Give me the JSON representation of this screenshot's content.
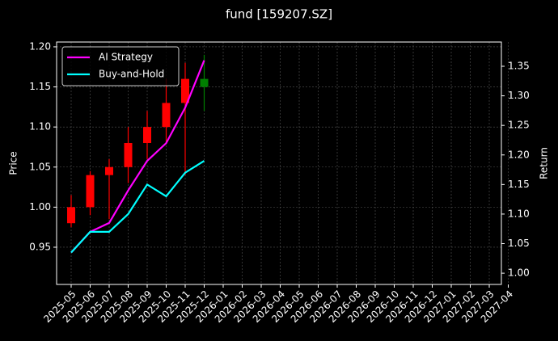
{
  "chart_data": {
    "type": "candlestick",
    "title": "fund [159207.SZ]",
    "ylabel": "Price",
    "y2label": "Return",
    "grid": true,
    "legend": "upper left",
    "up_color": "#ff0000",
    "down_color": "#008000",
    "x": [
      "2025-05",
      "2025-06",
      "2025-07",
      "2025-08",
      "2025-09",
      "2025-10",
      "2025-11",
      "2025-12"
    ],
    "open": [
      0.98,
      1.0,
      1.04,
      1.05,
      1.08,
      1.1,
      1.13,
      1.16
    ],
    "high": [
      1.015,
      1.045,
      1.06,
      1.1,
      1.12,
      1.16,
      1.18,
      1.19
    ],
    "low": [
      0.975,
      0.99,
      0.985,
      1.03,
      1.06,
      1.08,
      1.04,
      1.12
    ],
    "close": [
      1.0,
      1.04,
      1.05,
      1.08,
      1.1,
      1.13,
      1.16,
      1.15
    ],
    "series": [
      {
        "name": "AI Strategy",
        "color": "#ff00ff",
        "axis": "y2",
        "values": [
          1.035,
          1.07,
          1.085,
          1.14,
          1.19,
          1.22,
          1.28,
          1.36
        ]
      },
      {
        "name": "Buy-and-Hold",
        "color": "#00ffff",
        "axis": "y2",
        "values": [
          1.035,
          1.07,
          1.07,
          1.1,
          1.15,
          1.13,
          1.17,
          1.19
        ]
      }
    ],
    "xticks": [
      "2025-05",
      "2025-06",
      "2025-07",
      "2025-08",
      "2025-09",
      "2025-10",
      "2025-11",
      "2025-12",
      "2026-01",
      "2026-02",
      "2026-03",
      "2026-04",
      "2026-05",
      "2026-06",
      "2026-07",
      "2026-08",
      "2026-09",
      "2026-10",
      "2026-11",
      "2026-12",
      "2027-01",
      "2027-02",
      "2027-03",
      "2027-04"
    ],
    "ylim": [
      0.9036,
      1.206
    ],
    "yticks": [
      {
        "value": 0.95,
        "label": "0.95"
      },
      {
        "value": 1.0,
        "label": "1.00"
      },
      {
        "value": 1.05,
        "label": "1.05"
      },
      {
        "value": 1.1,
        "label": "1.10"
      },
      {
        "value": 1.15,
        "label": "1.15"
      },
      {
        "value": 1.2,
        "label": "1.20"
      }
    ],
    "y2lim": [
      0.981,
      1.391
    ],
    "y2ticks": [
      {
        "value": 1.0,
        "label": "1.00"
      },
      {
        "value": 1.05,
        "label": "1.05"
      },
      {
        "value": 1.1,
        "label": "1.10"
      },
      {
        "value": 1.15,
        "label": "1.15"
      },
      {
        "value": 1.2,
        "label": "1.20"
      },
      {
        "value": 1.25,
        "label": "1.25"
      },
      {
        "value": 1.3,
        "label": "1.30"
      },
      {
        "value": 1.35,
        "label": "1.35"
      }
    ]
  }
}
